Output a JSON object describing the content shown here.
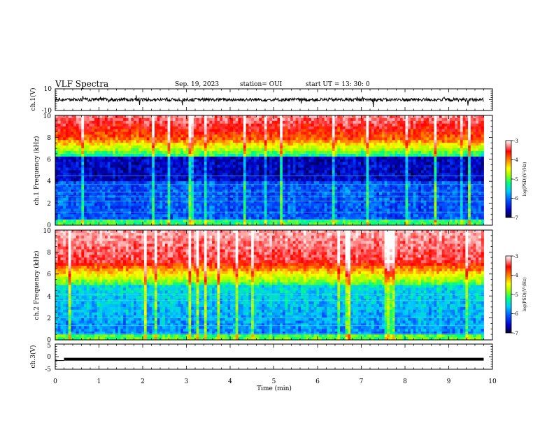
{
  "header": {
    "title": "VLF Spectra",
    "date": "Sep. 19, 2023",
    "station": "station= OUI",
    "start": "start  UT  =   13: 30: 0"
  },
  "chart_data": [
    {
      "type": "line",
      "panel": "ch1-waveform",
      "ylabel": "ch.1(V)",
      "ylim": [
        -10,
        10
      ],
      "yticks": [
        "10",
        "-10"
      ],
      "x_unit": "min",
      "xlim": [
        0,
        10
      ],
      "data_span": [
        0,
        9.8
      ],
      "baseline": 0,
      "amplitude_typical": 1.5
    },
    {
      "type": "heatmap",
      "panel": "ch1-spectrogram",
      "ylabel": "ch.1  Frequency  (kHz)",
      "ylim": [
        0,
        10
      ],
      "yticks": [
        "0",
        "2",
        "4",
        "6",
        "8",
        "10"
      ],
      "xlim": [
        0,
        10
      ],
      "data_span": [
        0,
        9.8
      ],
      "colorbar": {
        "label": "log(PSD)(V²/Hz)",
        "range": [
          -7,
          -3
        ],
        "ticks": [
          "-3",
          "-4",
          "-5",
          "-6",
          "-7"
        ]
      }
    },
    {
      "type": "heatmap",
      "panel": "ch2-spectrogram",
      "ylabel": "ch.2  Frequency  (kHz)",
      "ylim": [
        0,
        10
      ],
      "yticks": [
        "0",
        "2",
        "4",
        "6",
        "8",
        "10"
      ],
      "xlim": [
        0,
        10
      ],
      "data_span": [
        0,
        9.8
      ],
      "colorbar": {
        "label": "log(PSD)(V²/Hz)",
        "range": [
          -7,
          -3
        ],
        "ticks": [
          "-3",
          "-4",
          "-5",
          "-6",
          "-7"
        ]
      }
    },
    {
      "type": "line",
      "panel": "ch3-voltage",
      "ylabel": "ch.3(V)",
      "ylim": [
        -5,
        5
      ],
      "yticks": [
        "5",
        "0",
        "-5"
      ],
      "xlim": [
        0,
        10
      ],
      "x": [
        0.2,
        9.8
      ],
      "y": [
        -1,
        -1
      ]
    }
  ],
  "xaxis": {
    "label": "Time  (min)",
    "ticks": [
      "0",
      "1",
      "2",
      "3",
      "4",
      "5",
      "6",
      "7",
      "8",
      "9",
      "10"
    ]
  },
  "colors": {
    "background": "#ffffff",
    "trace": "#000000",
    "colormap": [
      "#000030",
      "#0000c8",
      "#0050ff",
      "#00c8ff",
      "#00ff80",
      "#a0ff00",
      "#ffff00",
      "#ff8000",
      "#ff0000",
      "#ff9a9a",
      "#ffffff"
    ]
  }
}
